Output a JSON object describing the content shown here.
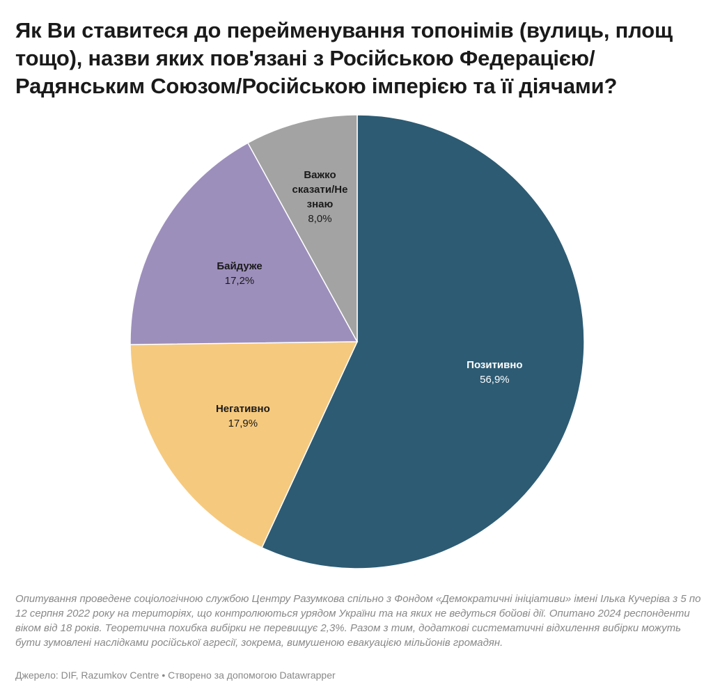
{
  "title": "Як Ви ставитеся до перейменування топонімів (вулиць, площ тощо), назви яких пов'язані з Російською Федерацією/ Радянським Союзом/Російською імперією та її діячами?",
  "chart_data": {
    "type": "pie",
    "title": "Як Ви ставитеся до перейменування топонімів (вулиць, площ тощо), назви яких пов'язані з Російською Федерацією/ Радянським Союзом/Російською імперією та її діячами?",
    "slices": [
      {
        "label": "Позитивно",
        "value": 56.9,
        "value_text": "56,9%",
        "color": "#2d5b73",
        "label_color": "#ffffff"
      },
      {
        "label": "Негативно",
        "value": 17.9,
        "value_text": "17,9%",
        "color": "#f5c97e",
        "label_color": "#1a1a1a"
      },
      {
        "label": "Байдуже",
        "value": 17.2,
        "value_text": "17,2%",
        "color": "#9d8fbc",
        "label_color": "#1a1a1a"
      },
      {
        "label": "Важко сказати/Не знаю",
        "label_lines": [
          "Важко",
          "сказати/Не",
          "знаю"
        ],
        "value": 8.0,
        "value_text": "8,0%",
        "color": "#a3a3a3",
        "label_color": "#1a1a1a"
      }
    ],
    "start": "12 o'clock",
    "direction": "clockwise",
    "legend": "none"
  },
  "notes": "Опитування проведене соціологічною службою Центру Разумкова спільно з Фондом «Демократичні ініціативи» імені Ілька Кучеріва з 5 по 12 серпня 2022 року на територіях, що контролюються урядом України та на яких не ведуться бойові дії. Опитано 2024 респонденти віком від 18 років. Теоретична похибка вибірки не перевищує 2,3%. Разом з тим, додаткові систематичні відхилення вибірки можуть бути зумовлені наслідками російської агресії, зокрема, вимушеною евакуацією мільйонів громадян.",
  "source": "Джерело: DIF, Razumkov Centre • Створено за допомогою Datawrapper"
}
